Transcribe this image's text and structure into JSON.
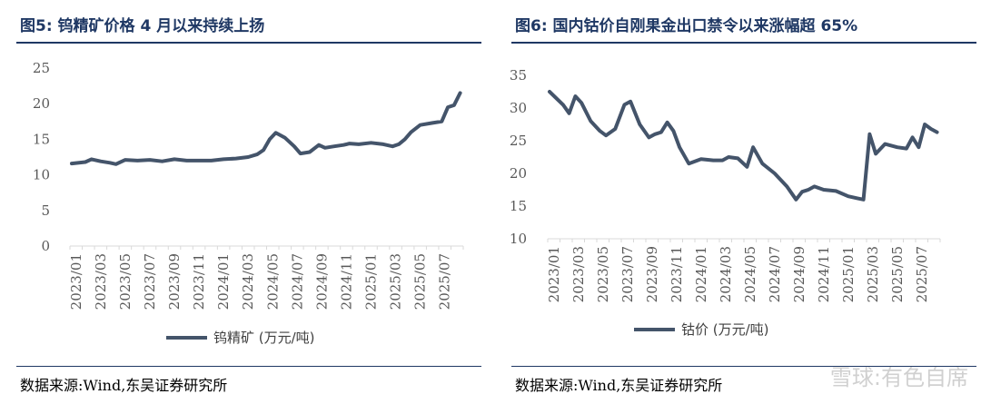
{
  "figures": [
    {
      "title": "图5:  钨精矿价格 4 月以来持续上扬",
      "source": "数据来源:Wind,东吴证券研究所",
      "legend": "钨精矿 (万元/吨)"
    },
    {
      "title": "图6:  国内钴价自刚果金出口禁令以来涨幅超 65%",
      "source": "数据来源:Wind,东吴证券研究所",
      "legend": "钴价 (万元/吨)"
    }
  ],
  "watermark": "雪球:有色自席",
  "chart_data": [
    {
      "type": "line",
      "title": "图5:  钨精矿价格 4 月以来持续上扬",
      "xlabel": "",
      "ylabel": "",
      "ylim": [
        0,
        25
      ],
      "yticks": [
        0,
        5,
        10,
        15,
        20,
        25
      ],
      "xticks": [
        "2023/01",
        "2023/03",
        "2023/05",
        "2023/07",
        "2023/09",
        "2023/11",
        "2024/01",
        "2024/03",
        "2024/05",
        "2024/07",
        "2024/09",
        "2024/11",
        "2025/01",
        "2025/03",
        "2025/05",
        "2025/07"
      ],
      "x_start": "2023/01",
      "x_end": "2025/08",
      "grid": false,
      "legend_position": "bottom-center",
      "color": "#44546a",
      "series": [
        {
          "name": "钨精矿 (万元/吨)",
          "points": [
            [
              "2023/01",
              11.6
            ],
            [
              "2023/02",
              11.8
            ],
            [
              "2023/02",
              12.2
            ],
            [
              "2023/03",
              11.9
            ],
            [
              "2023/04",
              11.7
            ],
            [
              "2023/04",
              11.5
            ],
            [
              "2023/05",
              12.1
            ],
            [
              "2023/06",
              12.0
            ],
            [
              "2023/07",
              12.1
            ],
            [
              "2023/08",
              11.9
            ],
            [
              "2023/09",
              12.2
            ],
            [
              "2023/10",
              12.0
            ],
            [
              "2023/11",
              12.0
            ],
            [
              "2023/12",
              12.0
            ],
            [
              "2024/01",
              12.2
            ],
            [
              "2024/02",
              12.3
            ],
            [
              "2024/03",
              12.5
            ],
            [
              "2024/04",
              12.9
            ],
            [
              "2024/04",
              13.5
            ],
            [
              "2024/05",
              15.0
            ],
            [
              "2024/05",
              15.9
            ],
            [
              "2024/06",
              15.2
            ],
            [
              "2024/07",
              14.0
            ],
            [
              "2024/07",
              13.0
            ],
            [
              "2024/08",
              13.2
            ],
            [
              "2024/09",
              14.2
            ],
            [
              "2024/09",
              13.8
            ],
            [
              "2024/10",
              14.0
            ],
            [
              "2024/11",
              14.2
            ],
            [
              "2024/11",
              14.4
            ],
            [
              "2024/12",
              14.3
            ],
            [
              "2025/01",
              14.5
            ],
            [
              "2025/02",
              14.3
            ],
            [
              "2025/03",
              14.0
            ],
            [
              "2025/03",
              14.3
            ],
            [
              "2025/04",
              15.0
            ],
            [
              "2025/04",
              16.0
            ],
            [
              "2025/05",
              17.0
            ],
            [
              "2025/06",
              17.3
            ],
            [
              "2025/07",
              17.5
            ],
            [
              "2025/07",
              19.5
            ],
            [
              "2025/08",
              19.8
            ],
            [
              "2025/08",
              21.5
            ]
          ]
        }
      ]
    },
    {
      "type": "line",
      "title": "图6:  国内钴价自刚果金出口禁令以来涨幅超 65%",
      "xlabel": "",
      "ylabel": "",
      "ylim": [
        10,
        35
      ],
      "yticks": [
        10,
        15,
        20,
        25,
        30,
        35
      ],
      "xticks": [
        "2023/01",
        "2023/03",
        "2023/05",
        "2023/07",
        "2023/09",
        "2023/11",
        "2024/01",
        "2024/03",
        "2024/05",
        "2024/07",
        "2024/09",
        "2024/11",
        "2025/01",
        "2025/03",
        "2025/05",
        "2025/07"
      ],
      "x_start": "2023/01",
      "x_end": "2025/08",
      "grid": false,
      "legend_position": "bottom-center",
      "color": "#44546a",
      "series": [
        {
          "name": "钴价 (万元/吨)",
          "points": [
            [
              "2023/01",
              32.5
            ],
            [
              "2023/02",
              30.5
            ],
            [
              "2023/02",
              29.2
            ],
            [
              "2023/03",
              31.8
            ],
            [
              "2023/03",
              30.8
            ],
            [
              "2023/04",
              28.0
            ],
            [
              "2023/05",
              26.5
            ],
            [
              "2023/05",
              25.8
            ],
            [
              "2023/06",
              26.8
            ],
            [
              "2023/07",
              30.5
            ],
            [
              "2023/07",
              31.0
            ],
            [
              "2023/08",
              27.5
            ],
            [
              "2023/09",
              25.5
            ],
            [
              "2023/09",
              26.0
            ],
            [
              "2023/10",
              26.3
            ],
            [
              "2023/10",
              27.8
            ],
            [
              "2023/11",
              26.5
            ],
            [
              "2023/11",
              24.0
            ],
            [
              "2023/12",
              21.5
            ],
            [
              "2024/01",
              22.2
            ],
            [
              "2024/02",
              22.0
            ],
            [
              "2024/03",
              22.0
            ],
            [
              "2024/03",
              22.5
            ],
            [
              "2024/04",
              22.3
            ],
            [
              "2024/05",
              21.0
            ],
            [
              "2024/05",
              24.0
            ],
            [
              "2024/06",
              21.5
            ],
            [
              "2024/07",
              20.0
            ],
            [
              "2024/08",
              18.0
            ],
            [
              "2024/09",
              16.0
            ],
            [
              "2024/09",
              17.2
            ],
            [
              "2024/10",
              17.5
            ],
            [
              "2024/10",
              18.0
            ],
            [
              "2024/11",
              17.5
            ],
            [
              "2024/12",
              17.3
            ],
            [
              "2025/01",
              16.5
            ],
            [
              "2025/02",
              16.2
            ],
            [
              "2025/02",
              16.0
            ],
            [
              "2025/03",
              26.0
            ],
            [
              "2025/03",
              23.0
            ],
            [
              "2025/04",
              24.5
            ],
            [
              "2025/05",
              24.0
            ],
            [
              "2025/06",
              23.8
            ],
            [
              "2025/06",
              25.5
            ],
            [
              "2025/07",
              24.0
            ],
            [
              "2025/07",
              27.5
            ],
            [
              "2025/08",
              26.8
            ],
            [
              "2025/08",
              26.3
            ]
          ]
        }
      ]
    }
  ]
}
